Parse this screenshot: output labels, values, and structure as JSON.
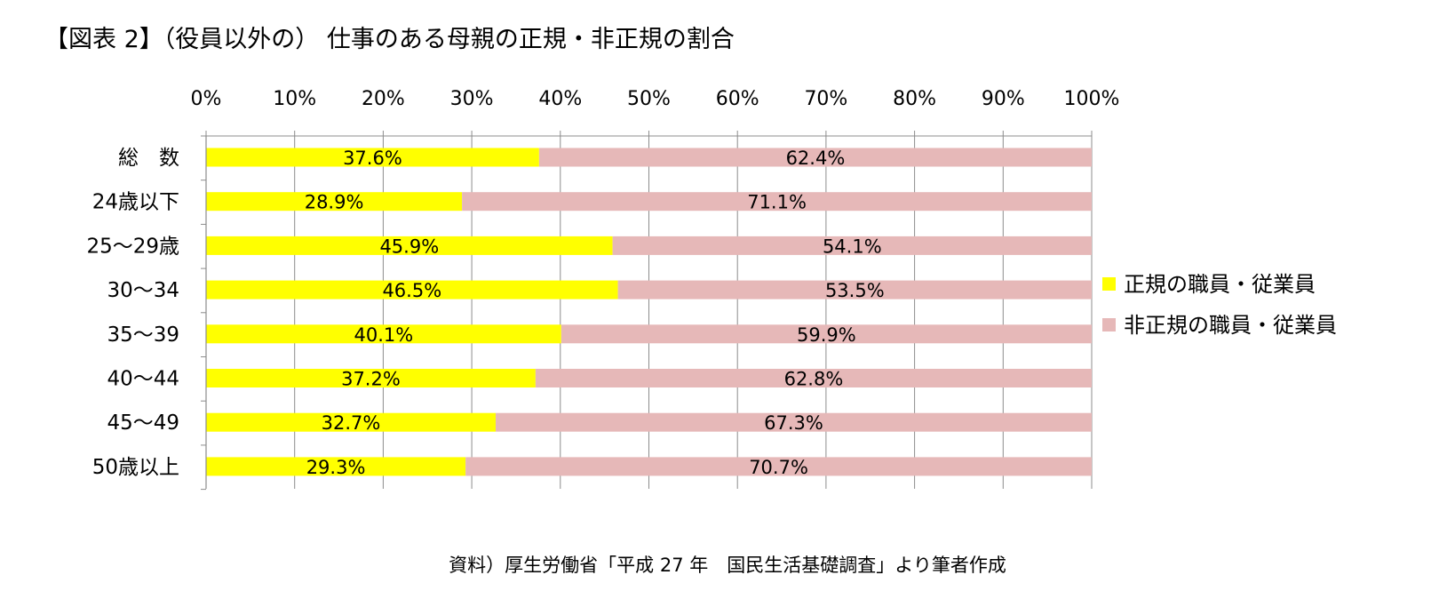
{
  "title": "【図表 2】（役員以外の） 仕事のある母親の正規・非正規の割合",
  "source": "資料）厚生労働省「平成 27 年　国民生活基礎調査」より筆者作成",
  "chart_data": {
    "type": "bar",
    "orientation": "horizontal",
    "stacked": "percent",
    "categories": [
      "総　数",
      "24歳以下",
      "25～29歳",
      "30～34",
      "35～39",
      "40～44",
      "45～49",
      "50歳以上"
    ],
    "series": [
      {
        "name": "正規の職員・従業員",
        "color": "#ffff00",
        "values": [
          37.6,
          28.9,
          45.9,
          46.5,
          40.1,
          37.2,
          32.7,
          29.3
        ],
        "labels": [
          "37.6%",
          "28.9%",
          "45.9%",
          "46.5%",
          "40.1%",
          "37.2%",
          "32.7%",
          "29.3%"
        ]
      },
      {
        "name": "非正規の職員・従業員",
        "color": "#e6b8b8",
        "values": [
          62.4,
          71.1,
          54.1,
          53.5,
          59.9,
          62.8,
          67.3,
          70.7
        ],
        "labels": [
          "62.4%",
          "71.1%",
          "54.1%",
          "53.5%",
          "59.9%",
          "62.8%",
          "67.3%",
          "70.7%"
        ]
      }
    ],
    "xlim": [
      0,
      100
    ],
    "x_ticks": [
      "0%",
      "10%",
      "20%",
      "30%",
      "40%",
      "50%",
      "60%",
      "70%",
      "80%",
      "90%",
      "100%"
    ],
    "x_axis_position": "top",
    "grid": true,
    "legend": "right"
  }
}
